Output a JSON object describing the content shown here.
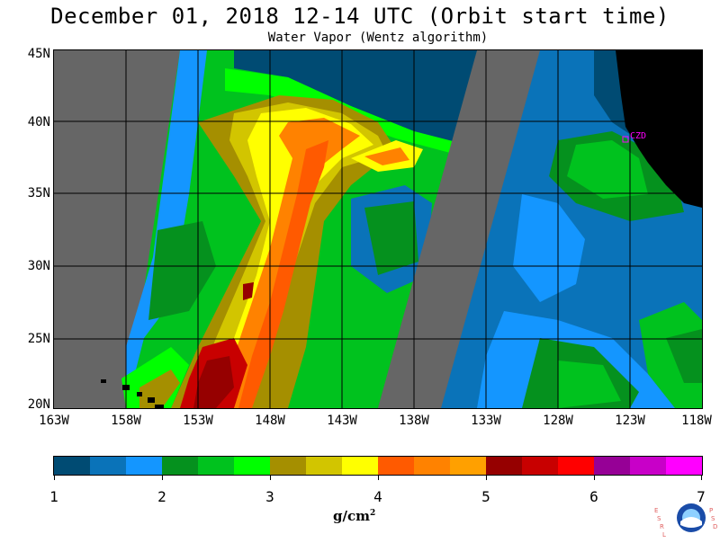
{
  "title": "December 01, 2018  12-14 UTC  (Orbit start time)",
  "subtitle": "Water Vapor (Wentz algorithm)",
  "lat_labels": [
    "45N",
    "40N",
    "35N",
    "30N",
    "25N",
    "20N"
  ],
  "lon_labels": [
    "163W",
    "158W",
    "153W",
    "148W",
    "143W",
    "138W",
    "133W",
    "128W",
    "123W",
    "118W"
  ],
  "colorbar": {
    "ticks": [
      "1",
      "2",
      "3",
      "4",
      "5",
      "6",
      "7"
    ],
    "unit": "g/cm",
    "unit_exponent": "2",
    "colors": [
      "#004b73",
      "#0a73b9",
      "#1496ff",
      "#05911e",
      "#00c21e",
      "#00ff00",
      "#a58f00",
      "#d2c500",
      "#ffff00",
      "#ff5a00",
      "#ff8200",
      "#ffa000",
      "#960000",
      "#c80000",
      "#ff0000",
      "#960096",
      "#c800c8",
      "#ff00ff"
    ]
  },
  "map": {
    "nodata_color": "#666666",
    "land_color": "#000000",
    "station_label": "CZD"
  },
  "logo": {
    "left_letters": "ESRL",
    "right_letters": "PSD",
    "center_text": "NOAA"
  }
}
